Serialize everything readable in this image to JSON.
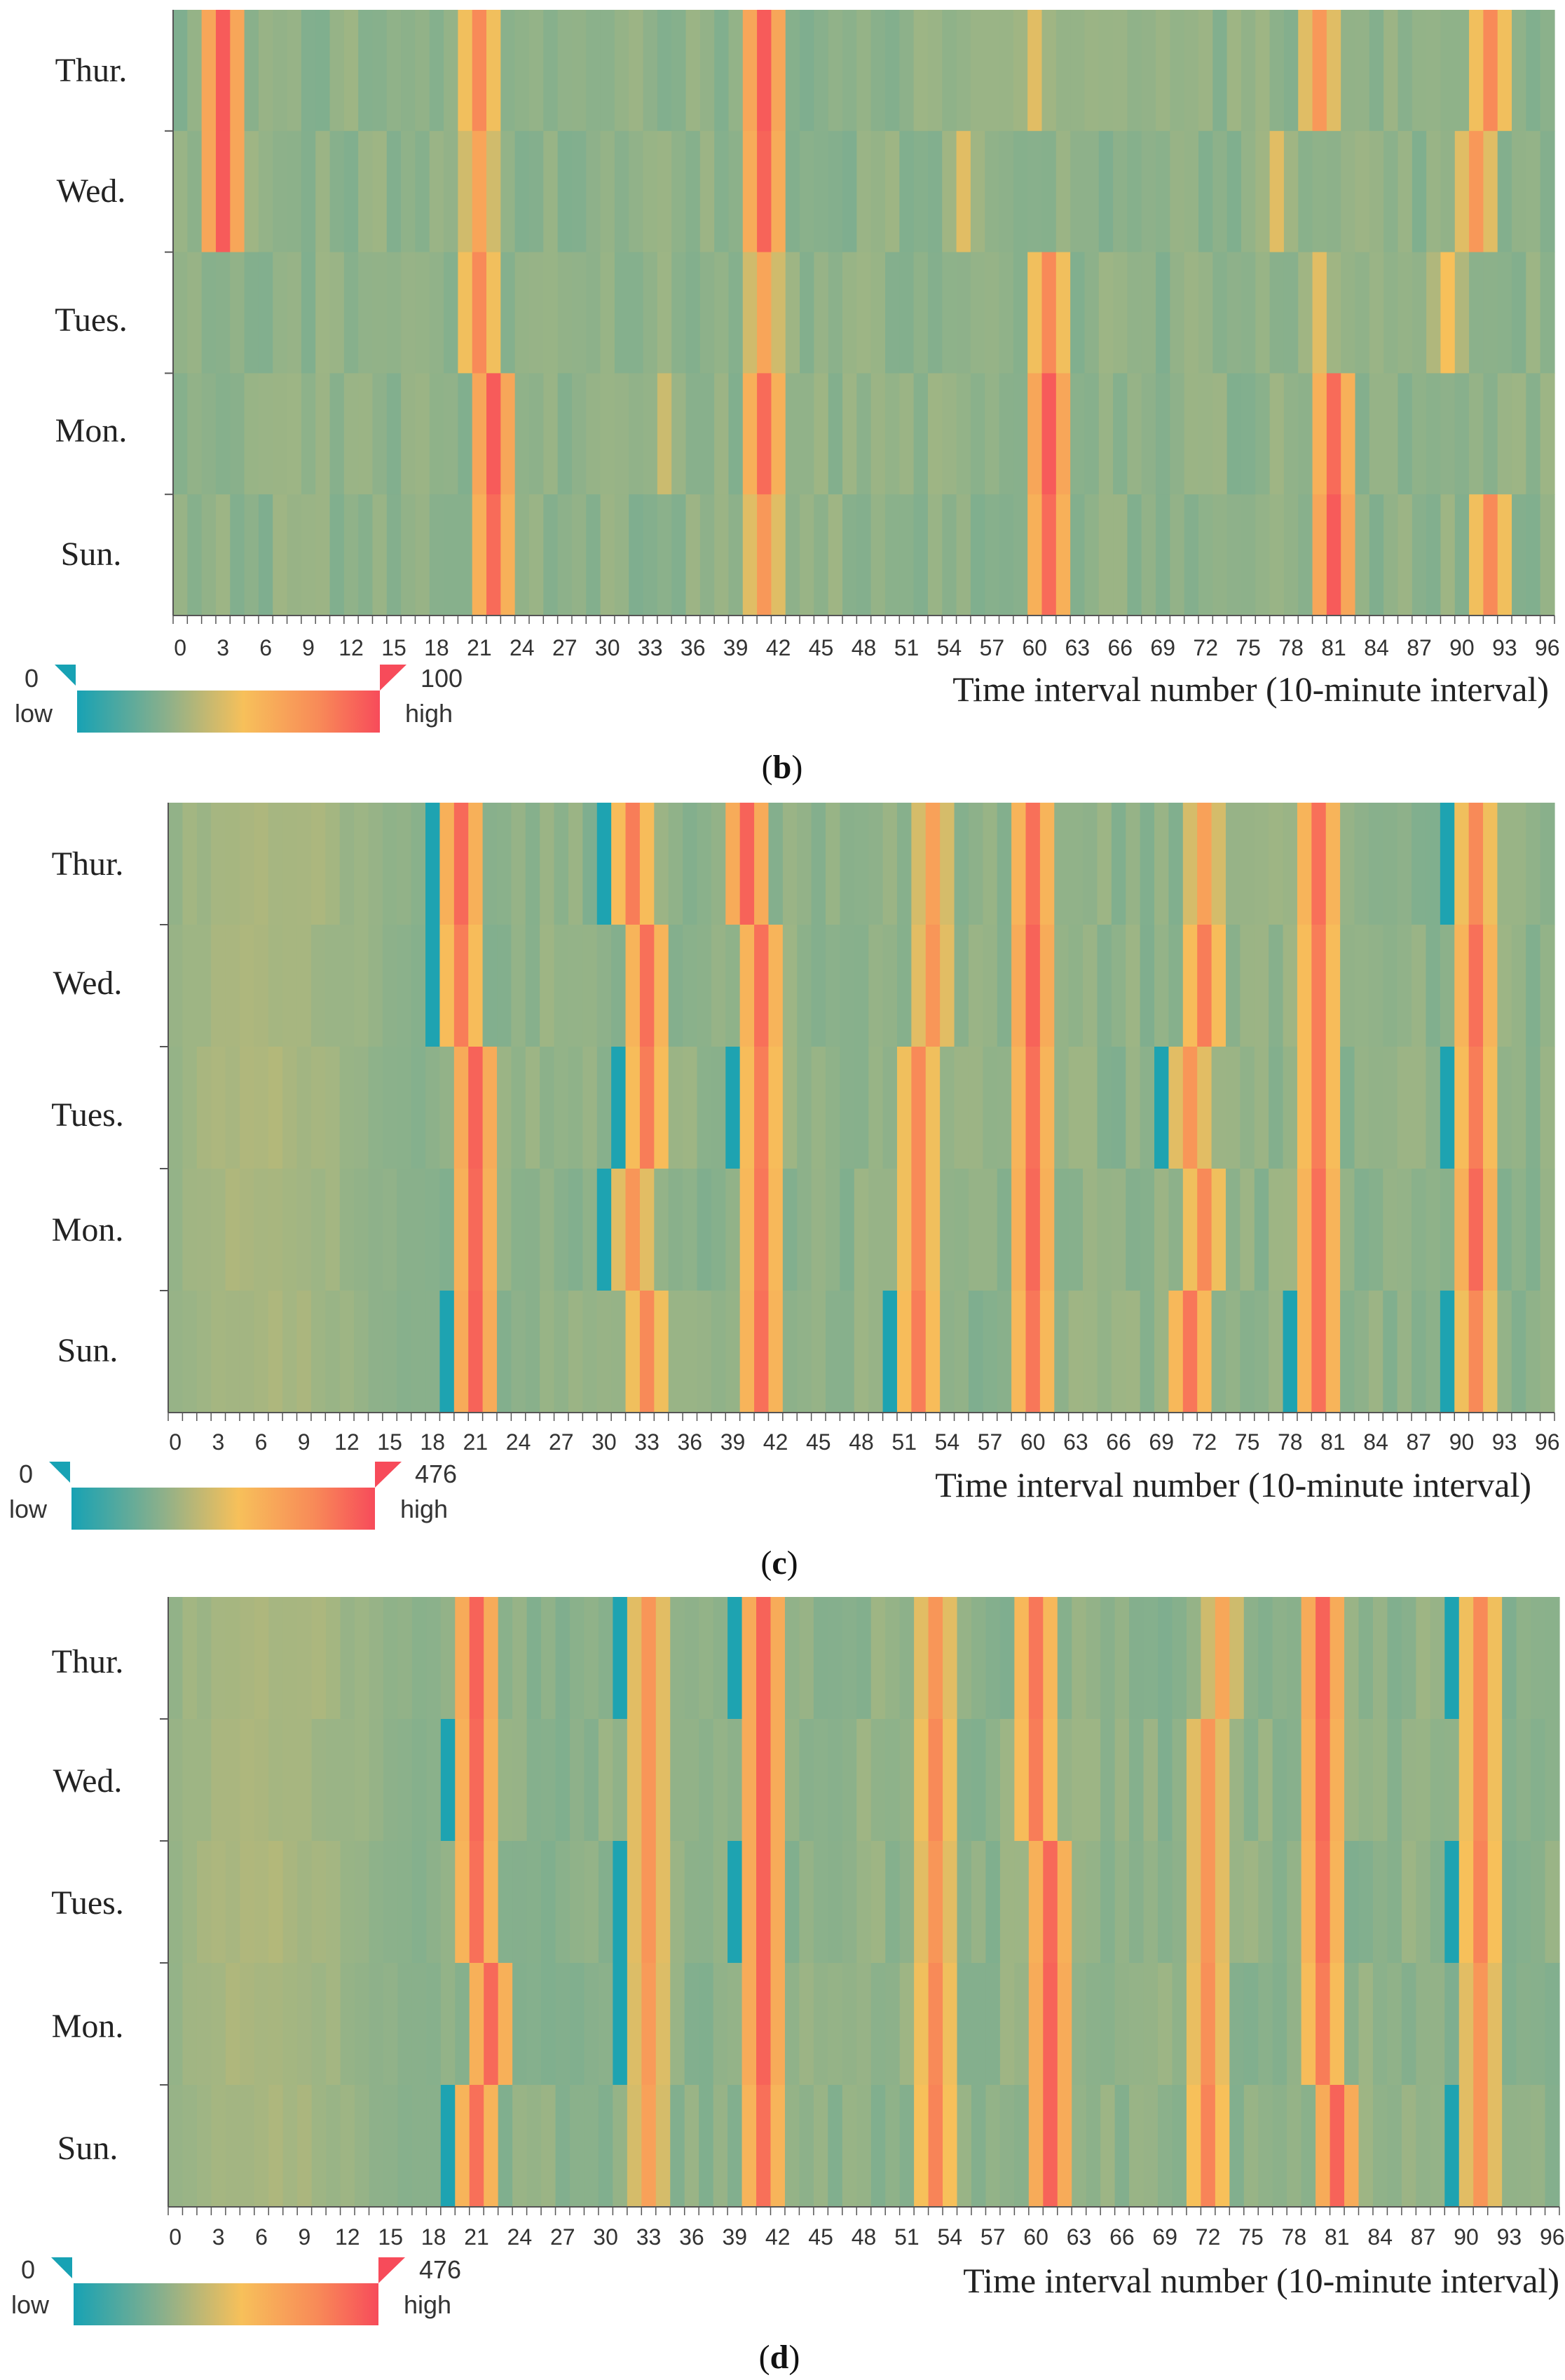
{
  "colors": {
    "low": "#17a2b4",
    "mid": "#f7c05a",
    "high": "#f74b5a",
    "axis": "#555555"
  },
  "chart_data": [
    {
      "type": "heatmap",
      "panel_label": "b",
      "title": "",
      "xlabel": "Time interval number (10-minute interval)",
      "ylabel": "",
      "rows": [
        "Thur.",
        "Wed.",
        "Tues.",
        "Mon.",
        "Sun."
      ],
      "x_ticks": [
        "0",
        "3",
        "6",
        "9",
        "12",
        "15",
        "18",
        "21",
        "24",
        "27",
        "30",
        "33",
        "36",
        "39",
        "42",
        "45",
        "48",
        "51",
        "54",
        "57",
        "60",
        "63",
        "66",
        "69",
        "72",
        "75",
        "78",
        "81",
        "84",
        "87",
        "90",
        "93",
        "96"
      ],
      "x_range": [
        0,
        97
      ],
      "value_range": [
        0,
        100
      ],
      "legend": {
        "min": "0",
        "max": "100",
        "low_label": "low",
        "high_label": "high"
      },
      "peaks": {
        "Thur.": [
          [
            3,
            95
          ],
          [
            21,
            80
          ],
          [
            41,
            95
          ],
          [
            60,
            55
          ],
          [
            80,
            75
          ],
          [
            92,
            80
          ]
        ],
        "Wed.": [
          [
            3,
            95
          ],
          [
            21,
            70
          ],
          [
            41,
            92
          ],
          [
            55,
            55
          ],
          [
            77,
            55
          ],
          [
            91,
            75
          ]
        ],
        "Tues.": [
          [
            21,
            80
          ],
          [
            41,
            70
          ],
          [
            61,
            80
          ],
          [
            80,
            55
          ],
          [
            89,
            60
          ]
        ],
        "Mon.": [
          [
            22,
            95
          ],
          [
            34,
            50
          ],
          [
            41,
            90
          ],
          [
            61,
            95
          ],
          [
            81,
            90
          ]
        ],
        "Sun.": [
          [
            22,
            90
          ],
          [
            41,
            75
          ],
          [
            61,
            90
          ],
          [
            81,
            95
          ],
          [
            92,
            80
          ]
        ]
      }
    },
    {
      "type": "heatmap",
      "panel_label": "c",
      "title": "",
      "xlabel": "Time interval number (10-minute interval)",
      "ylabel": "",
      "rows": [
        "Thur.",
        "Wed.",
        "Tues.",
        "Mon.",
        "Sun."
      ],
      "x_ticks": [
        "0",
        "3",
        "6",
        "9",
        "12",
        "15",
        "18",
        "21",
        "24",
        "27",
        "30",
        "33",
        "36",
        "39",
        "42",
        "45",
        "48",
        "51",
        "54",
        "57",
        "60",
        "63",
        "66",
        "69",
        "72",
        "75",
        "78",
        "81",
        "84",
        "87",
        "90",
        "93",
        "96"
      ],
      "x_range": [
        0,
        97
      ],
      "value_range": [
        0,
        476
      ],
      "legend": {
        "min": "0",
        "max": "476",
        "low_label": "low",
        "high_label": "high"
      },
      "peaks": {
        "Thur.": [
          [
            20,
            430
          ],
          [
            32,
            400
          ],
          [
            40,
            440
          ],
          [
            53,
            340
          ],
          [
            60,
            420
          ],
          [
            72,
            340
          ],
          [
            80,
            420
          ],
          [
            91,
            380
          ]
        ],
        "Wed.": [
          [
            20,
            400
          ],
          [
            33,
            420
          ],
          [
            41,
            420
          ],
          [
            53,
            360
          ],
          [
            60,
            440
          ],
          [
            72,
            400
          ],
          [
            80,
            400
          ],
          [
            91,
            420
          ]
        ],
        "Tues.": [
          [
            21,
            440
          ],
          [
            33,
            400
          ],
          [
            41,
            400
          ],
          [
            52,
            380
          ],
          [
            60,
            420
          ],
          [
            71,
            360
          ],
          [
            80,
            400
          ],
          [
            91,
            400
          ]
        ],
        "Mon.": [
          [
            21,
            430
          ],
          [
            32,
            360
          ],
          [
            41,
            410
          ],
          [
            52,
            380
          ],
          [
            60,
            430
          ],
          [
            72,
            380
          ],
          [
            80,
            420
          ],
          [
            91,
            430
          ]
        ],
        "Sun.": [
          [
            21,
            440
          ],
          [
            33,
            380
          ],
          [
            41,
            420
          ],
          [
            52,
            400
          ],
          [
            60,
            410
          ],
          [
            71,
            410
          ],
          [
            80,
            420
          ],
          [
            91,
            380
          ]
        ]
      }
    },
    {
      "type": "heatmap",
      "panel_label": "d",
      "title": "",
      "xlabel": "Time interval number (10-minute interval)",
      "ylabel": "",
      "rows": [
        "Thur.",
        "Wed.",
        "Tues.",
        "Mon.",
        "Sun."
      ],
      "x_ticks": [
        "0",
        "3",
        "6",
        "9",
        "12",
        "15",
        "18",
        "21",
        "24",
        "27",
        "30",
        "33",
        "36",
        "39",
        "42",
        "45",
        "48",
        "51",
        "54",
        "57",
        "60",
        "63",
        "66",
        "69",
        "72",
        "75",
        "78",
        "81",
        "84",
        "87",
        "90",
        "93",
        "96"
      ],
      "x_range": [
        0,
        97
      ],
      "value_range": [
        0,
        476
      ],
      "legend": {
        "min": "0",
        "max": "476",
        "low_label": "low",
        "high_label": "high"
      },
      "peaks": {
        "Thur.": [
          [
            21,
            440
          ],
          [
            33,
            360
          ],
          [
            41,
            440
          ],
          [
            53,
            360
          ],
          [
            60,
            410
          ],
          [
            73,
            330
          ],
          [
            80,
            440
          ],
          [
            91,
            380
          ]
        ],
        "Wed.": [
          [
            21,
            430
          ],
          [
            33,
            360
          ],
          [
            41,
            440
          ],
          [
            53,
            380
          ],
          [
            60,
            400
          ],
          [
            72,
            360
          ],
          [
            80,
            430
          ],
          [
            91,
            380
          ]
        ],
        "Tues.": [
          [
            21,
            420
          ],
          [
            33,
            360
          ],
          [
            41,
            440
          ],
          [
            53,
            360
          ],
          [
            61,
            430
          ],
          [
            72,
            360
          ],
          [
            80,
            420
          ],
          [
            91,
            390
          ]
        ],
        "Mon.": [
          [
            22,
            430
          ],
          [
            33,
            350
          ],
          [
            41,
            440
          ],
          [
            53,
            380
          ],
          [
            61,
            440
          ],
          [
            72,
            370
          ],
          [
            80,
            400
          ],
          [
            91,
            360
          ]
        ],
        "Sun.": [
          [
            21,
            420
          ],
          [
            33,
            340
          ],
          [
            41,
            420
          ],
          [
            53,
            390
          ],
          [
            61,
            440
          ],
          [
            72,
            390
          ],
          [
            81,
            440
          ],
          [
            91,
            360
          ]
        ]
      }
    }
  ]
}
